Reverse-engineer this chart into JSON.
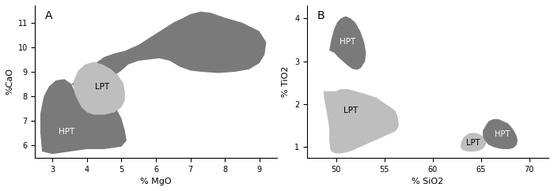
{
  "panel_A": {
    "title": "A",
    "xlabel": "% MgO",
    "ylabel": "%CaO",
    "xlim": [
      2.5,
      9.5
    ],
    "ylim": [
      5.5,
      11.7
    ],
    "xticks": [
      3,
      4,
      5,
      6,
      7,
      8,
      9
    ],
    "yticks": [
      6,
      7,
      8,
      9,
      10,
      11
    ],
    "hpt_color": "#7a7a7a",
    "lpt_color": "#bebebe",
    "hpt_poly": [
      [
        2.7,
        5.75
      ],
      [
        3.0,
        5.65
      ],
      [
        3.5,
        5.75
      ],
      [
        4.0,
        5.85
      ],
      [
        4.5,
        5.85
      ],
      [
        5.0,
        5.95
      ],
      [
        5.15,
        6.2
      ],
      [
        5.1,
        6.6
      ],
      [
        5.0,
        7.1
      ],
      [
        4.85,
        7.5
      ],
      [
        4.6,
        7.65
      ],
      [
        4.3,
        7.6
      ],
      [
        4.05,
        7.4
      ],
      [
        3.85,
        7.55
      ],
      [
        3.7,
        8.0
      ],
      [
        3.55,
        8.5
      ],
      [
        3.35,
        8.7
      ],
      [
        3.1,
        8.65
      ],
      [
        2.9,
        8.4
      ],
      [
        2.75,
        8.0
      ],
      [
        2.65,
        7.3
      ],
      [
        2.65,
        6.5
      ],
      [
        2.7,
        5.75
      ]
    ],
    "hpt_upper_poly": [
      [
        3.55,
        8.5
      ],
      [
        3.7,
        8.65
      ],
      [
        3.9,
        8.85
      ],
      [
        4.1,
        9.1
      ],
      [
        4.3,
        9.4
      ],
      [
        4.5,
        9.6
      ],
      [
        4.8,
        9.75
      ],
      [
        5.1,
        9.85
      ],
      [
        5.5,
        10.1
      ],
      [
        6.0,
        10.55
      ],
      [
        6.5,
        11.0
      ],
      [
        6.8,
        11.2
      ],
      [
        7.0,
        11.35
      ],
      [
        7.3,
        11.45
      ],
      [
        7.6,
        11.4
      ],
      [
        8.0,
        11.2
      ],
      [
        8.5,
        11.0
      ],
      [
        9.0,
        10.65
      ],
      [
        9.2,
        10.2
      ],
      [
        9.15,
        9.7
      ],
      [
        9.0,
        9.35
      ],
      [
        8.7,
        9.1
      ],
      [
        8.3,
        9.0
      ],
      [
        7.8,
        8.95
      ],
      [
        7.3,
        9.0
      ],
      [
        7.0,
        9.05
      ],
      [
        6.7,
        9.2
      ],
      [
        6.4,
        9.45
      ],
      [
        6.1,
        9.55
      ],
      [
        5.8,
        9.5
      ],
      [
        5.5,
        9.45
      ],
      [
        5.2,
        9.3
      ],
      [
        5.0,
        9.05
      ],
      [
        4.8,
        8.85
      ],
      [
        4.5,
        8.6
      ],
      [
        4.2,
        8.4
      ],
      [
        3.85,
        8.2
      ],
      [
        3.55,
        8.5
      ]
    ],
    "lpt_poly": [
      [
        3.85,
        7.55
      ],
      [
        4.0,
        7.35
      ],
      [
        4.2,
        7.25
      ],
      [
        4.5,
        7.25
      ],
      [
        4.8,
        7.35
      ],
      [
        5.0,
        7.55
      ],
      [
        5.1,
        7.85
      ],
      [
        5.1,
        8.2
      ],
      [
        5.05,
        8.55
      ],
      [
        4.9,
        8.85
      ],
      [
        4.7,
        9.1
      ],
      [
        4.45,
        9.3
      ],
      [
        4.2,
        9.4
      ],
      [
        3.95,
        9.3
      ],
      [
        3.75,
        9.05
      ],
      [
        3.65,
        8.75
      ],
      [
        3.6,
        8.45
      ],
      [
        3.65,
        8.1
      ],
      [
        3.75,
        7.8
      ],
      [
        3.85,
        7.55
      ]
    ]
  },
  "panel_B": {
    "title": "B",
    "xlabel": "% SiO2",
    "ylabel": "% TiO2",
    "xlim": [
      47,
      72
    ],
    "ylim": [
      0.75,
      4.3
    ],
    "xticks": [
      50,
      55,
      60,
      65,
      70
    ],
    "yticks": [
      1,
      2,
      3,
      4
    ],
    "hpt_color": "#7a7a7a",
    "lpt_color": "#bebebe",
    "hpt_upper_poly": [
      [
        49.3,
        3.25
      ],
      [
        49.5,
        3.5
      ],
      [
        49.8,
        3.75
      ],
      [
        50.1,
        3.9
      ],
      [
        50.5,
        4.0
      ],
      [
        51.0,
        4.05
      ],
      [
        51.5,
        4.0
      ],
      [
        52.0,
        3.9
      ],
      [
        52.5,
        3.7
      ],
      [
        52.9,
        3.45
      ],
      [
        53.1,
        3.2
      ],
      [
        53.0,
        3.0
      ],
      [
        52.6,
        2.85
      ],
      [
        52.2,
        2.8
      ],
      [
        51.7,
        2.82
      ],
      [
        51.2,
        2.9
      ],
      [
        50.7,
        3.0
      ],
      [
        50.2,
        3.1
      ],
      [
        49.8,
        3.2
      ],
      [
        49.3,
        3.25
      ]
    ],
    "lpt_poly": [
      [
        48.7,
        2.3
      ],
      [
        48.8,
        2.1
      ],
      [
        49.0,
        1.85
      ],
      [
        49.2,
        1.6
      ],
      [
        49.3,
        1.4
      ],
      [
        49.3,
        1.15
      ],
      [
        49.4,
        0.95
      ],
      [
        49.6,
        0.88
      ],
      [
        50.0,
        0.85
      ],
      [
        50.5,
        0.85
      ],
      [
        51.0,
        0.87
      ],
      [
        51.5,
        0.9
      ],
      [
        52.0,
        0.95
      ],
      [
        52.5,
        1.0
      ],
      [
        53.0,
        1.05
      ],
      [
        53.5,
        1.1
      ],
      [
        54.0,
        1.15
      ],
      [
        54.5,
        1.2
      ],
      [
        55.0,
        1.25
      ],
      [
        55.5,
        1.3
      ],
      [
        56.0,
        1.35
      ],
      [
        56.3,
        1.4
      ],
      [
        56.5,
        1.5
      ],
      [
        56.4,
        1.7
      ],
      [
        56.1,
        1.85
      ],
      [
        55.5,
        1.95
      ],
      [
        54.8,
        2.05
      ],
      [
        54.2,
        2.15
      ],
      [
        53.5,
        2.2
      ],
      [
        52.8,
        2.25
      ],
      [
        52.0,
        2.3
      ],
      [
        51.2,
        2.35
      ],
      [
        50.5,
        2.35
      ],
      [
        50.0,
        2.3
      ],
      [
        49.5,
        2.3
      ],
      [
        49.0,
        2.3
      ],
      [
        48.7,
        2.3
      ]
    ],
    "hpt_lower_poly": [
      [
        65.5,
        1.5
      ],
      [
        65.8,
        1.6
      ],
      [
        66.3,
        1.65
      ],
      [
        66.8,
        1.65
      ],
      [
        67.3,
        1.6
      ],
      [
        67.8,
        1.55
      ],
      [
        68.2,
        1.45
      ],
      [
        68.5,
        1.35
      ],
      [
        68.7,
        1.25
      ],
      [
        68.8,
        1.15
      ],
      [
        68.7,
        1.05
      ],
      [
        68.4,
        0.98
      ],
      [
        67.9,
        0.95
      ],
      [
        67.3,
        0.95
      ],
      [
        66.8,
        0.97
      ],
      [
        66.3,
        1.0
      ],
      [
        65.8,
        1.05
      ],
      [
        65.4,
        1.15
      ],
      [
        65.2,
        1.25
      ],
      [
        65.2,
        1.38
      ],
      [
        65.5,
        1.5
      ]
    ],
    "lpt_lower_poly": [
      [
        63.5,
        1.28
      ],
      [
        63.8,
        1.32
      ],
      [
        64.2,
        1.33
      ],
      [
        64.6,
        1.32
      ],
      [
        65.0,
        1.28
      ],
      [
        65.3,
        1.22
      ],
      [
        65.5,
        1.15
      ],
      [
        65.5,
        1.05
      ],
      [
        65.3,
        0.98
      ],
      [
        65.0,
        0.93
      ],
      [
        64.5,
        0.9
      ],
      [
        64.0,
        0.89
      ],
      [
        63.5,
        0.9
      ],
      [
        63.1,
        0.93
      ],
      [
        62.9,
        0.98
      ],
      [
        62.9,
        1.05
      ],
      [
        63.0,
        1.14
      ],
      [
        63.2,
        1.22
      ],
      [
        63.5,
        1.28
      ]
    ]
  }
}
